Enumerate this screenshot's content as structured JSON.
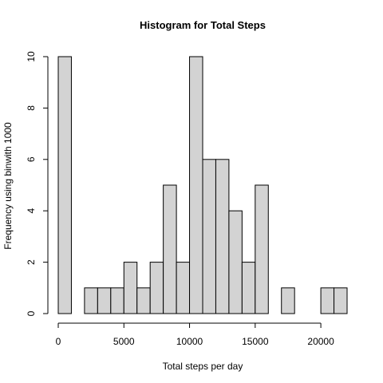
{
  "chart_data": {
    "type": "bar",
    "title": "Histogram for Total Steps",
    "xlabel": "Total steps per day",
    "ylabel": "Frequency using binwith 1000",
    "bin_width": 1000,
    "bins": [
      {
        "start": 0,
        "end": 1000,
        "count": 10
      },
      {
        "start": 1000,
        "end": 2000,
        "count": 0
      },
      {
        "start": 2000,
        "end": 3000,
        "count": 1
      },
      {
        "start": 3000,
        "end": 4000,
        "count": 1
      },
      {
        "start": 4000,
        "end": 5000,
        "count": 1
      },
      {
        "start": 5000,
        "end": 6000,
        "count": 2
      },
      {
        "start": 6000,
        "end": 7000,
        "count": 1
      },
      {
        "start": 7000,
        "end": 8000,
        "count": 2
      },
      {
        "start": 8000,
        "end": 9000,
        "count": 5
      },
      {
        "start": 9000,
        "end": 10000,
        "count": 2
      },
      {
        "start": 10000,
        "end": 11000,
        "count": 10
      },
      {
        "start": 11000,
        "end": 12000,
        "count": 6
      },
      {
        "start": 12000,
        "end": 13000,
        "count": 6
      },
      {
        "start": 13000,
        "end": 14000,
        "count": 4
      },
      {
        "start": 14000,
        "end": 15000,
        "count": 2
      },
      {
        "start": 15000,
        "end": 16000,
        "count": 5
      },
      {
        "start": 16000,
        "end": 17000,
        "count": 0
      },
      {
        "start": 17000,
        "end": 18000,
        "count": 1
      },
      {
        "start": 18000,
        "end": 19000,
        "count": 0
      },
      {
        "start": 19000,
        "end": 20000,
        "count": 0
      },
      {
        "start": 20000,
        "end": 21000,
        "count": 1
      },
      {
        "start": 21000,
        "end": 22000,
        "count": 1
      }
    ],
    "xlim": [
      0,
      22000
    ],
    "ylim": [
      0,
      10
    ],
    "x_ticks": [
      0,
      5000,
      10000,
      15000,
      20000
    ],
    "y_ticks": [
      0,
      2,
      4,
      6,
      8,
      10
    ],
    "bar_color": "#d3d3d3",
    "grid": false
  }
}
